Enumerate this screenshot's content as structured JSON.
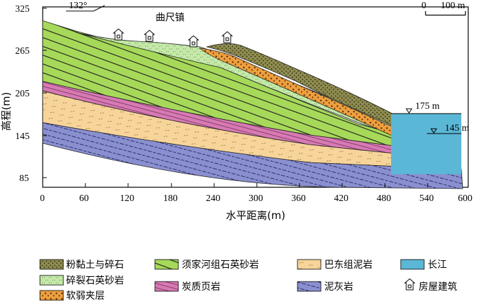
{
  "figure": {
    "orientation_label": "132°",
    "town_label": "曲尺镇",
    "scale_bar": {
      "start": "0",
      "end": "100 m"
    },
    "water_level_upper": "175 m",
    "water_level_lower": "145 m"
  },
  "axes": {
    "y_title": "高程(m)",
    "x_title": "水平距离(m)",
    "y_ticks": [
      "325",
      "265",
      "205",
      "145",
      "85"
    ],
    "x_ticks": [
      "0",
      "60",
      "120",
      "180",
      "240",
      "300",
      "360",
      "420",
      "480",
      "540",
      "600"
    ]
  },
  "legend": [
    {
      "key": "soil_gravel",
      "label": "粉黏土与碎石",
      "color": "#8c8a4b"
    },
    {
      "key": "xujiahe",
      "label": "须家河组石英砂岩",
      "color": "#9acd32"
    },
    {
      "key": "badong",
      "label": "巴东组泥岩",
      "color": "#f6cf8f"
    },
    {
      "key": "yangtze",
      "label": "长江",
      "color": "#5bb7d6"
    },
    {
      "key": "cracked_sandstone",
      "label": "碎裂石英砂岩",
      "color": "#b9e3a0"
    },
    {
      "key": "carbonaceous_shale",
      "label": "炭质页岩",
      "color": "#d56aa8"
    },
    {
      "key": "marlstone",
      "label": "泥灰岩",
      "color": "#7f86c4"
    },
    {
      "key": "weak_interlayer",
      "label": "软弱夹层",
      "color": "#e99a3c"
    },
    {
      "key": "house",
      "label": "房屋建筑",
      "color": "#ffffff"
    }
  ]
}
